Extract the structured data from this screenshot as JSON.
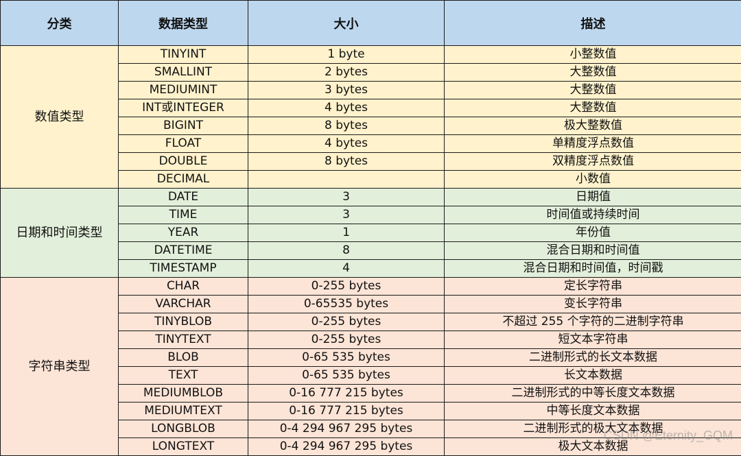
{
  "headers": [
    "分类",
    "数据类型",
    "大小",
    "描述"
  ],
  "colors": {
    "header": "#BDD7EE",
    "numeric": "#FFF2CC",
    "datetime": "#E2EFDA",
    "string": "#FCE4D6"
  },
  "groups": [
    {
      "category": "数值类型",
      "rows": [
        [
          "TINYINT",
          "1 byte",
          "小整数值"
        ],
        [
          "SMALLINT",
          "2 bytes",
          "大整数值"
        ],
        [
          "MEDIUMINT",
          "3 bytes",
          "大整数值"
        ],
        [
          "INT或INTEGER",
          "4 bytes",
          "大整数值"
        ],
        [
          "BIGINT",
          "8 bytes",
          "极大整数值"
        ],
        [
          "FLOAT",
          "4 bytes",
          "单精度浮点数值"
        ],
        [
          "DOUBLE",
          "8 bytes",
          "双精度浮点数值"
        ],
        [
          "DECIMAL",
          "",
          "小数值"
        ]
      ]
    },
    {
      "category": "日期和时间类型",
      "rows": [
        [
          "DATE",
          "3",
          "日期值"
        ],
        [
          "TIME",
          "3",
          "时间值或持续时间"
        ],
        [
          "YEAR",
          "1",
          "年份值"
        ],
        [
          "DATETIME",
          "8",
          "混合日期和时间值"
        ],
        [
          "TIMESTAMP",
          "4",
          "混合日期和时间值，时间戳"
        ]
      ]
    },
    {
      "category": "字符串类型",
      "rows": [
        [
          "CHAR",
          "0-255 bytes",
          "定长字符串"
        ],
        [
          "VARCHAR",
          "0-65535 bytes",
          "变长字符串"
        ],
        [
          "TINYBLOB",
          "0-255 bytes",
          "不超过 255 个字符的二进制字符串"
        ],
        [
          "TINYTEXT",
          "0-255 bytes",
          "短文本字符串"
        ],
        [
          "BLOB",
          "0-65 535 bytes",
          "二进制形式的长文本数据"
        ],
        [
          "TEXT",
          "0-65 535 bytes",
          "长文本数据"
        ],
        [
          "MEDIUMBLOB",
          "0-16 777 215 bytes",
          "二进制形式的中等长度文本数据"
        ],
        [
          "MEDIUMTEXT",
          "0-16 777 215 bytes",
          "中等长度文本数据"
        ],
        [
          "LONGBLOB",
          "0-4 294 967 295 bytes",
          "二进制形式的极大文本数据"
        ],
        [
          "LONGTEXT",
          "0-4 294 967 295 bytes",
          "极大文本数据"
        ]
      ]
    }
  ],
  "watermark": "CSDN @Eternity_GQM"
}
